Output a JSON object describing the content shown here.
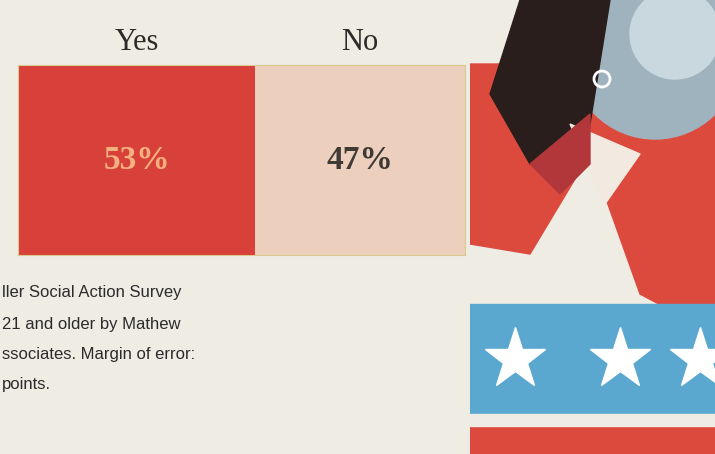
{
  "chart_data": {
    "type": "bar",
    "orientation": "horizontal",
    "stacked": true,
    "categories": [
      null
    ],
    "series": [
      {
        "name": "Yes",
        "color": "#d8403a",
        "values": [
          53
        ],
        "value_labels": [
          "53%"
        ]
      },
      {
        "name": "No",
        "color": "#ecd0bd",
        "values": [
          47
        ],
        "value_labels": [
          "47%"
        ]
      }
    ],
    "xlim": [
      0,
      100
    ],
    "data_labels": true,
    "tick_labels": false,
    "notes": [
      "ller Social Action Survey",
      "21 and older by Mathew",
      "ssociates. Margin of error:",
      "points."
    ]
  }
}
